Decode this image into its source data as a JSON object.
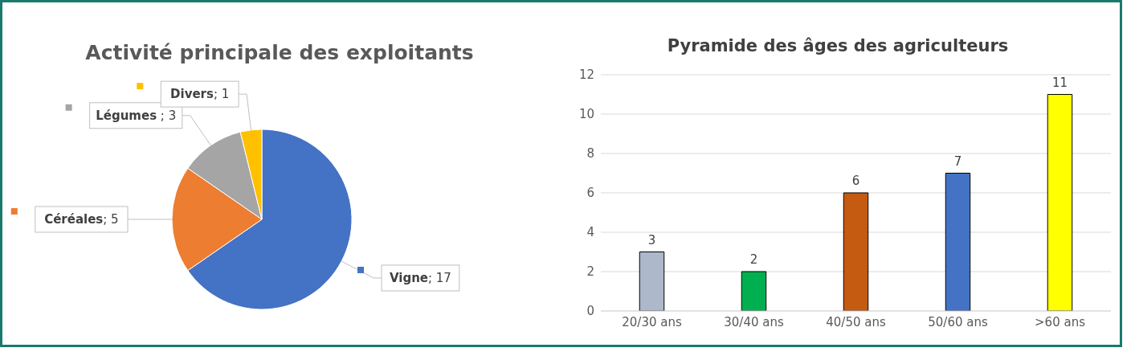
{
  "chart_data": [
    {
      "type": "pie",
      "title": "Activité principale des exploitants",
      "categories": [
        "Vigne",
        "Céréales",
        "Légumes",
        "Divers"
      ],
      "values": [
        17,
        5,
        3,
        1
      ],
      "colors": [
        "#4472c4",
        "#ed7d31",
        "#a5a5a5",
        "#ffc000"
      ],
      "value_labels": [
        "; 17",
        "; 5",
        " ; 3",
        "; 1"
      ],
      "legend": "left"
    },
    {
      "type": "bar",
      "title": "Pyramide des âges des agriculteurs",
      "categories": [
        "20/30 ans",
        "30/40 ans",
        "40/50 ans",
        "50/60 ans",
        ">60 ans"
      ],
      "values": [
        3,
        2,
        6,
        7,
        11
      ],
      "colors": [
        "#adb9ca",
        "#00b050",
        "#c55a11",
        "#4472c4",
        "#ffff00"
      ],
      "ylim": [
        0,
        12
      ],
      "yticks": [
        0,
        2,
        4,
        6,
        8,
        10,
        12
      ],
      "grid": "y",
      "data_labels": true,
      "legend": false
    }
  ]
}
